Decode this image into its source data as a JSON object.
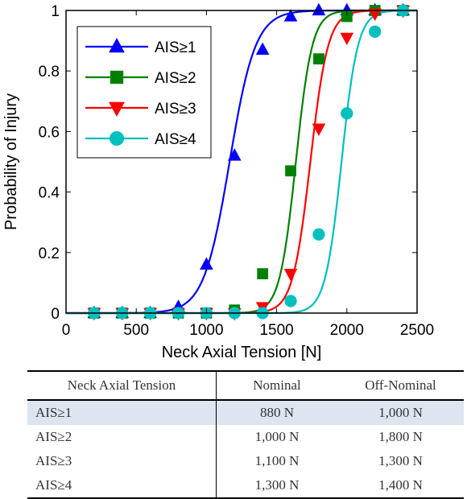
{
  "chart_data": {
    "type": "line",
    "xlabel": "Neck Axial Tension [N]",
    "ylabel": "Probability of Injury",
    "xlim": [
      0,
      2500
    ],
    "ylim": [
      0,
      1
    ],
    "x_ticks": [
      "0",
      "500",
      "1000",
      "1500",
      "2000",
      "2500"
    ],
    "y_ticks": [
      "0",
      "0.2",
      "0.4",
      "0.6",
      "0.8",
      "1"
    ],
    "grid": false,
    "legend_position": "top-left",
    "marker_x": [
      200,
      400,
      600,
      800,
      1000,
      1200,
      1400,
      1600,
      1800,
      2000,
      2200,
      2400
    ],
    "series": [
      {
        "name": "AIS≥1",
        "color": "#0000ff",
        "marker": "triangle-up",
        "center": 1165,
        "width": 92,
        "values": [
          0.0,
          0.0,
          0.0,
          0.02,
          0.16,
          0.52,
          0.87,
          0.98,
          1.0,
          1.0,
          1.0,
          1.0
        ]
      },
      {
        "name": "AIS≥2",
        "color": "#008000",
        "marker": "square",
        "center": 1637,
        "width": 58,
        "values": [
          0.0,
          0.0,
          0.0,
          0.0,
          0.0,
          0.01,
          0.13,
          0.47,
          0.84,
          0.98,
          1.0,
          1.0
        ]
      },
      {
        "name": "AIS≥3",
        "color": "#ff0000",
        "marker": "triangle-down",
        "center": 1740,
        "width": 63,
        "values": [
          0.0,
          0.0,
          0.0,
          0.0,
          0.0,
          0.0,
          0.02,
          0.13,
          0.61,
          0.91,
          0.99,
          1.0
        ]
      },
      {
        "name": "AIS≥4",
        "color": "#00bfbf",
        "marker": "circle",
        "center": 1962,
        "width": 58,
        "values": [
          0.0,
          0.0,
          0.0,
          0.0,
          0.0,
          0.0,
          0.0,
          0.04,
          0.26,
          0.66,
          0.93,
          1.0
        ]
      }
    ]
  },
  "table": {
    "headers": [
      "Neck Axial Tension",
      "Nominal",
      "Off-Nominal"
    ],
    "rows": [
      {
        "label": "AIS≥1",
        "nominal": "880 N",
        "off_nominal": "1,000 N"
      },
      {
        "label": "AIS≥2",
        "nominal": "1,000 N",
        "off_nominal": "1,800 N"
      },
      {
        "label": "AIS≥3",
        "nominal": "1,100 N",
        "off_nominal": "1,300 N"
      },
      {
        "label": "AIS≥4",
        "nominal": "1,300 N",
        "off_nominal": "1,400 N"
      }
    ]
  }
}
